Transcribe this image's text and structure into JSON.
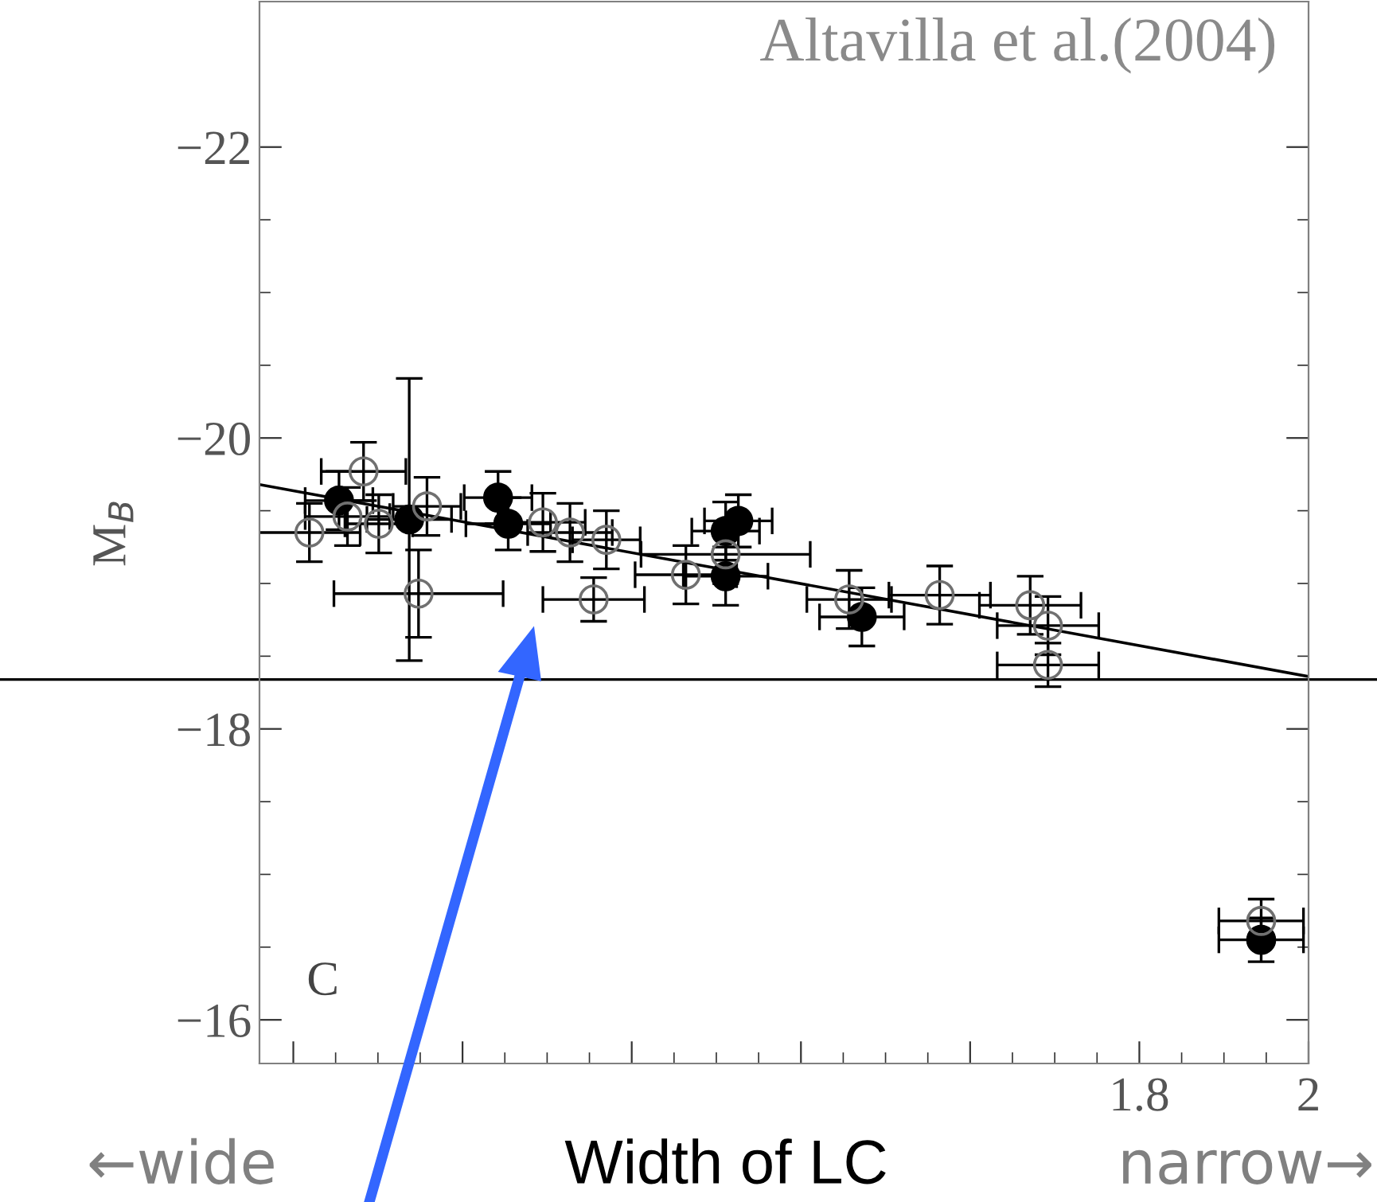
{
  "chart_data": {
    "type": "scatter",
    "xlabel": "Width of LC",
    "ylabel": "M$_{B}$",
    "annotations": [
      "Altavilla et al.(2004)",
      "C",
      "←wide",
      "narrow→"
    ],
    "xlim": [
      0.76,
      2.0
    ],
    "ylim": [
      -15.7,
      -23.0
    ],
    "xticks": [
      {
        "value": 0.8,
        "label": null
      },
      {
        "value": 1.0,
        "label": null
      },
      {
        "value": 1.2,
        "label": null
      },
      {
        "value": 1.4,
        "label": null
      },
      {
        "value": 1.6,
        "label": null
      },
      1.8,
      2
    ],
    "yticks": [
      {
        "value": -22,
        "label": "−22"
      },
      {
        "value": -20,
        "label": "−20"
      },
      {
        "value": -18,
        "label": "−18"
      },
      {
        "value": -16,
        "label": "−16"
      }
    ],
    "marker": "circle",
    "series": [
      {
        "color": "#000000",
        "x": [
          0.854,
          0.937,
          1.042,
          1.054,
          1.311,
          1.311,
          1.326,
          1.472,
          1.944
        ],
        "values": [
          -19.57,
          -19.44,
          -19.59,
          -19.41,
          -19.05,
          -19.36,
          -19.43,
          -18.77,
          -16.55
        ],
        "errors": [
          0.2,
          0.97,
          0.18,
          0.18,
          0.2,
          0.2,
          0.18,
          0.2,
          0.15
        ],
        "xerrors": [
          0.04,
          0.05,
          0.04,
          0.05,
          0.05,
          0.04,
          0.04,
          0.05,
          0.05
        ]
      },
      {
        "color": "#707070",
        "x": [
          0.819,
          0.883,
          0.864,
          0.901,
          0.958,
          0.948,
          1.095,
          1.127,
          1.17,
          1.264,
          1.155,
          1.311,
          1.457,
          1.564,
          1.671,
          1.692,
          1.692,
          1.944
        ],
        "values": [
          -19.35,
          -19.77,
          -19.46,
          -19.41,
          -19.53,
          -18.93,
          -19.42,
          -19.35,
          -19.3,
          -19.06,
          -18.89,
          -19.2,
          -18.89,
          -18.92,
          -18.85,
          -18.71,
          -18.44,
          -16.68
        ],
        "errors": [
          0.2,
          0.2,
          0.2,
          0.2,
          0.2,
          0.3,
          0.2,
          0.2,
          0.2,
          0.2,
          0.15,
          0.2,
          0.2,
          0.2,
          0.2,
          0.2,
          0.15,
          0.15
        ],
        "xerrors": [
          0.06,
          0.05,
          0.05,
          0.04,
          0.04,
          0.1,
          0.05,
          0.05,
          0.04,
          0.06,
          0.06,
          0.1,
          0.05,
          0.06,
          0.06,
          0.06,
          0.06,
          0.05
        ]
      },
      {
        "type": "line",
        "marker": "none",
        "color": "#000000",
        "x": [
          0.76,
          2.0
        ],
        "values": [
          -19.68,
          -18.36
        ]
      }
    ],
    "ref_lines": [
      {
        "axis": "y",
        "value": -18.34,
        "color": "#000000"
      }
    ],
    "grid": false,
    "legend": false
  }
}
